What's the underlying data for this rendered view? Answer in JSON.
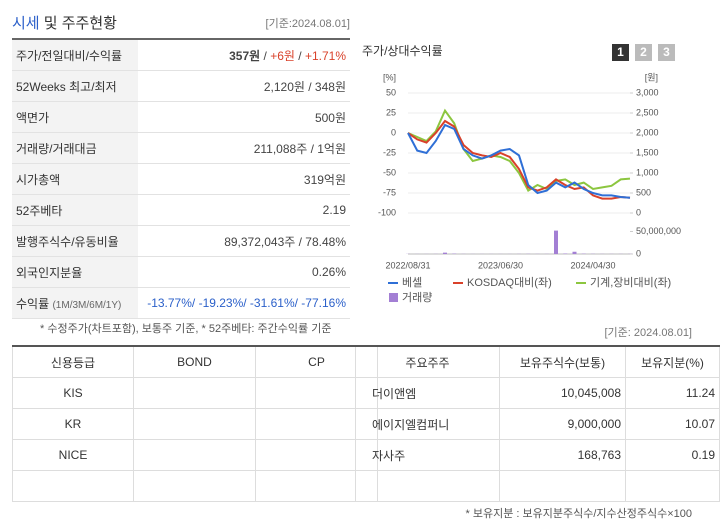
{
  "header": {
    "title": "시세",
    "title_rest": "및 주주현황",
    "basis": "[기준:2024.08.01]"
  },
  "summary": {
    "rows": [
      {
        "label": "주가/전일대비/수익률",
        "value": [
          {
            "text": "357원",
            "bold": true
          },
          {
            "text": " / "
          },
          {
            "text": "+6원",
            "color": "#d9412a"
          },
          {
            "text": " / "
          },
          {
            "text": "+1.71%",
            "color": "#d9412a"
          }
        ]
      },
      {
        "label": "52Weeks 최고/최저",
        "value": [
          {
            "text": "2,120원 / 348원"
          }
        ]
      },
      {
        "label": "액면가",
        "value": [
          {
            "text": "500원"
          }
        ]
      },
      {
        "label": "거래량/거래대금",
        "value": [
          {
            "text": "211,088주 / 1억원"
          }
        ]
      },
      {
        "label": "시가총액",
        "value": [
          {
            "text": "319억원"
          }
        ]
      },
      {
        "label": "52주베타",
        "value": [
          {
            "text": "2.19"
          }
        ]
      },
      {
        "label": "발행주식수/유동비율",
        "value": [
          {
            "text": "89,372,043주 / 78.48%"
          }
        ]
      },
      {
        "label": "외국인지분율",
        "value": [
          {
            "text": "0.26%"
          }
        ]
      },
      {
        "label": "수익률",
        "sublabel": "(1M/3M/6M/1Y)",
        "value": [
          {
            "text": "-13.77%/ -19.23%/ -31.61%/ -77.16%",
            "color": "#2a5fc9"
          }
        ]
      }
    ],
    "note": "* 수정주가(차트포함), 보통주 기준, * 52주베타: 주간수익률 기준"
  },
  "chart": {
    "type": "line",
    "title": "주가/상대수익률",
    "tabs": [
      "1",
      "2",
      "3"
    ],
    "y_unit": "[%]",
    "y2_unit": "[원]",
    "basis": "[기준: 2024.08.01]",
    "categories": [
      "2022/08/31",
      null,
      null,
      null,
      null,
      null,
      null,
      null,
      null,
      null,
      "2023/06/30",
      null,
      null,
      null,
      null,
      null,
      null,
      null,
      null,
      null,
      "2024/04/30",
      null,
      null,
      null,
      null
    ],
    "ylim": [
      -100,
      50
    ],
    "yticks": [
      50,
      25,
      0,
      -25,
      -50,
      -75,
      -100
    ],
    "y2lim": [
      0,
      3000
    ],
    "y2ticks": [
      {
        "value": 3000,
        "label": "3,000"
      },
      {
        "value": 2500,
        "label": "2,500"
      },
      {
        "value": 2000,
        "label": "2,000"
      },
      {
        "value": 1500,
        "label": "1,500"
      },
      {
        "value": 1000,
        "label": "1,000"
      },
      500,
      0
    ],
    "series": [
      {
        "name": "베셀",
        "color": "#2f6fd6",
        "axis": "y2",
        "values": [
          2000,
          1560,
          1500,
          1800,
          2200,
          2100,
          1600,
          1440,
          1360,
          1440,
          1560,
          1600,
          1440,
          700,
          500,
          560,
          760,
          640,
          760,
          600,
          500,
          440,
          440,
          400,
          380
        ]
      },
      {
        "name": "KOSDAQ대비(좌)",
        "color": "#d9412a",
        "values": [
          0,
          -8,
          -12,
          0,
          15,
          8,
          -15,
          -25,
          -28,
          -30,
          -25,
          -30,
          -45,
          -68,
          -72,
          -68,
          -58,
          -65,
          -70,
          -68,
          -78,
          -82,
          -82,
          -80,
          -81
        ]
      },
      {
        "name": "기계,장비대비(좌)",
        "color": "#8cc63f",
        "values": [
          0,
          -5,
          -10,
          2,
          28,
          12,
          -20,
          -35,
          -32,
          -28,
          -30,
          -35,
          -50,
          -72,
          -65,
          -70,
          -60,
          -58,
          -65,
          -62,
          -70,
          -68,
          -66,
          -58,
          -57
        ]
      }
    ],
    "volume": {
      "name": "거래량",
      "color": "#a37fd4",
      "values": [
        300000,
        200000,
        200000,
        300000,
        3000000,
        800000,
        300000,
        200000,
        200000,
        200000,
        200000,
        200000,
        300000,
        400000,
        300000,
        300000,
        52000000,
        1000000,
        5000000,
        700000,
        400000,
        300000,
        300000,
        300000,
        300000
      ],
      "lim": [
        0,
        60000000
      ],
      "ticks": [
        {
          "value": 50000000,
          "label": "50,000,000"
        },
        0
      ]
    }
  },
  "ratings": {
    "columns": [
      "신용등급",
      "BOND",
      "CP"
    ],
    "rows": [
      [
        "KIS",
        "",
        ""
      ],
      [
        "KR",
        "",
        ""
      ],
      [
        "NICE",
        "",
        ""
      ],
      [
        "",
        "",
        ""
      ]
    ]
  },
  "holders": {
    "columns": [
      "주요주주",
      "보유주식수(보통)",
      "보유지분(%)"
    ],
    "rows": [
      [
        "더이앤엠",
        "10,045,008",
        "11.24"
      ],
      [
        "에이지엘컴퍼니",
        "9,000,000",
        "10.07"
      ],
      [
        "자사주",
        "168,763",
        "0.19"
      ],
      [
        "",
        "",
        ""
      ]
    ],
    "note": "* 보유지분 : 보유지분주식수/지수산정주식수×100"
  }
}
